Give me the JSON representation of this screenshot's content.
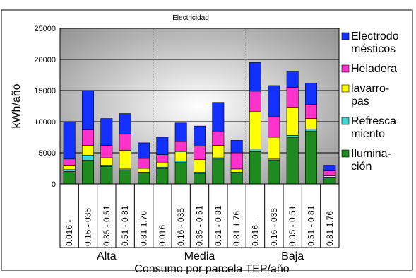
{
  "chart_data": {
    "type": "bar",
    "stacked": true,
    "title": "Electricidad",
    "ylabel": "kWh/año",
    "xlabel": "Consumo por parcela TEP/año",
    "ylim": [
      0,
      25000
    ],
    "yticks": [
      "0",
      "5000",
      "10000",
      "15000",
      "20000",
      "25000"
    ],
    "groups": [
      {
        "name": "Alta",
        "categories": [
          "0.016 -",
          "0.16 - 035",
          "0.35 - 0.51",
          "0.51 - 0.81",
          "0.81 1.76"
        ]
      },
      {
        "name": "Media",
        "categories": [
          "0.016",
          "0.16 - 035",
          "0.35 - 0.51",
          "0.51 - 0.81",
          "0.81 1.76"
        ]
      },
      {
        "name": "Baja",
        "categories": [
          "0.016 -",
          "0.16 - 035",
          "0.35 - 0.51",
          "0.51 - 0.81",
          "0.81 1.76"
        ]
      }
    ],
    "series": [
      {
        "name": "Iluminación",
        "legend_label": [
          "Ilumina-",
          "ción"
        ],
        "color": "#1f8a1f",
        "values": [
          2000,
          3800,
          2800,
          2200,
          1800,
          2500,
          3500,
          1700,
          4000,
          1800,
          5200,
          3800,
          7500,
          8500,
          1000
        ]
      },
      {
        "name": "Refrescamiento",
        "legend_label": [
          "Refresca",
          "miento"
        ],
        "color": "#3fd6d6",
        "values": [
          300,
          800,
          200,
          200,
          100,
          200,
          200,
          200,
          200,
          100,
          400,
          200,
          300,
          300,
          100
        ]
      },
      {
        "name": "lavarropas",
        "legend_label": [
          "lavarro-",
          "pas"
        ],
        "color": "#ffff00",
        "values": [
          700,
          1600,
          1200,
          3000,
          600,
          800,
          1500,
          2000,
          2000,
          500,
          6000,
          3500,
          4500,
          1700,
          200
        ]
      },
      {
        "name": "Heladera",
        "legend_label": [
          "Heladera"
        ],
        "color": "#ff33cc",
        "values": [
          1000,
          2500,
          2000,
          2600,
          1600,
          1200,
          1600,
          2200,
          2300,
          2600,
          3300,
          3300,
          3200,
          2300,
          800
        ]
      },
      {
        "name": "Electrodomésticos",
        "legend_label": [
          "Electrodo",
          "mésticos"
        ],
        "color": "#1230ff",
        "values": [
          6000,
          6300,
          4300,
          3300,
          2500,
          2800,
          3000,
          3200,
          4600,
          2000,
          4600,
          5000,
          2600,
          3400,
          900
        ]
      }
    ]
  }
}
